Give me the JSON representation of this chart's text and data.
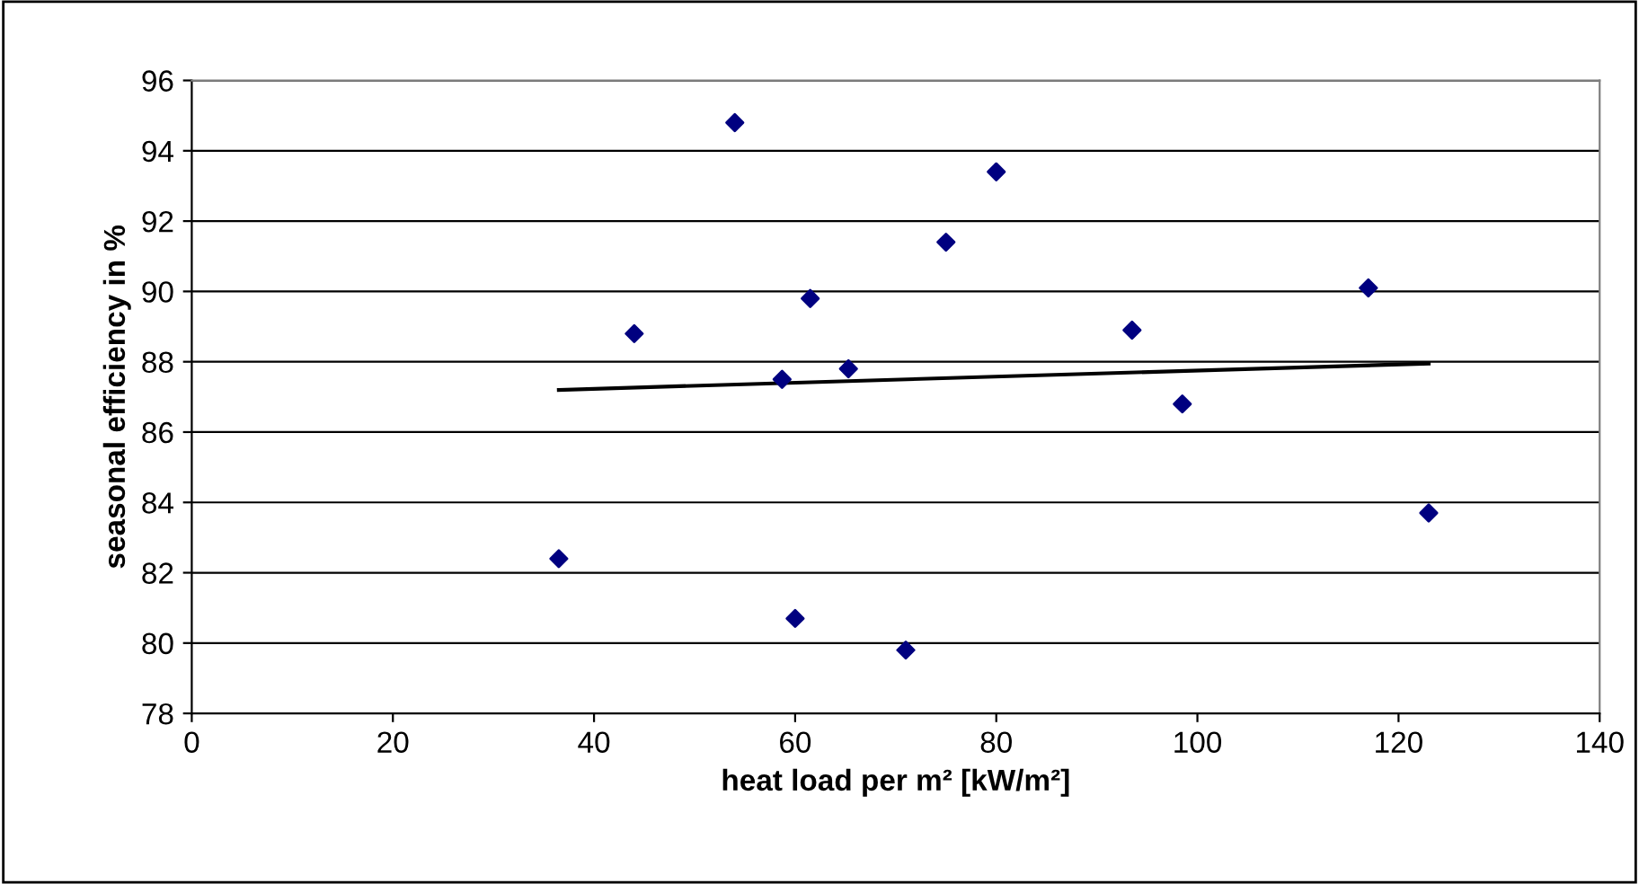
{
  "chart_data": {
    "type": "scatter",
    "xlabel": "heat load per m² [kW/m²]",
    "ylabel": "seasonal efficiency in %",
    "xlim": [
      0,
      140
    ],
    "xticks": [
      0,
      20,
      40,
      60,
      80,
      100,
      120,
      140
    ],
    "ylim": [
      78,
      96
    ],
    "yticks": [
      78,
      80,
      82,
      84,
      86,
      88,
      90,
      92,
      94,
      96
    ],
    "grid": "y",
    "series": [
      {
        "marker": "diamond",
        "color": "#000080",
        "x": [
          36.5,
          44,
          54,
          58.7,
          60,
          61.5,
          65.3,
          71,
          75,
          80,
          93.5,
          98.5,
          117,
          123
        ],
        "values": [
          82.4,
          88.8,
          94.8,
          87.5,
          80.7,
          89.8,
          87.8,
          79.8,
          91.4,
          93.4,
          88.9,
          86.8,
          90.1,
          83.7
        ]
      },
      {
        "type": "line",
        "color": "#000000",
        "x": [
          36.5,
          123
        ],
        "values": [
          87.2,
          87.95
        ]
      }
    ]
  }
}
